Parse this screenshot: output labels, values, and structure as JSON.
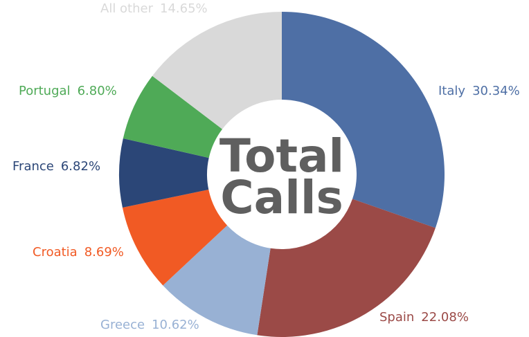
{
  "chart_data": {
    "type": "pie",
    "categories": [
      "Italy",
      "Spain",
      "Greece",
      "Croatia",
      "France",
      "Portugal",
      "All other"
    ],
    "values": [
      30.34,
      22.08,
      10.62,
      8.69,
      6.82,
      6.8,
      14.65
    ],
    "value_labels": [
      "30.34%",
      "22.08%",
      "10.62%",
      "8.69%",
      "6.82%",
      "6.80%",
      "14.65%"
    ],
    "colors": [
      "#4e6fa5",
      "#9b4a47",
      "#98b1d4",
      "#f15a24",
      "#2b4677",
      "#4faa57",
      "#d9d9d9"
    ],
    "center_text": [
      "Total",
      "Calls"
    ]
  }
}
